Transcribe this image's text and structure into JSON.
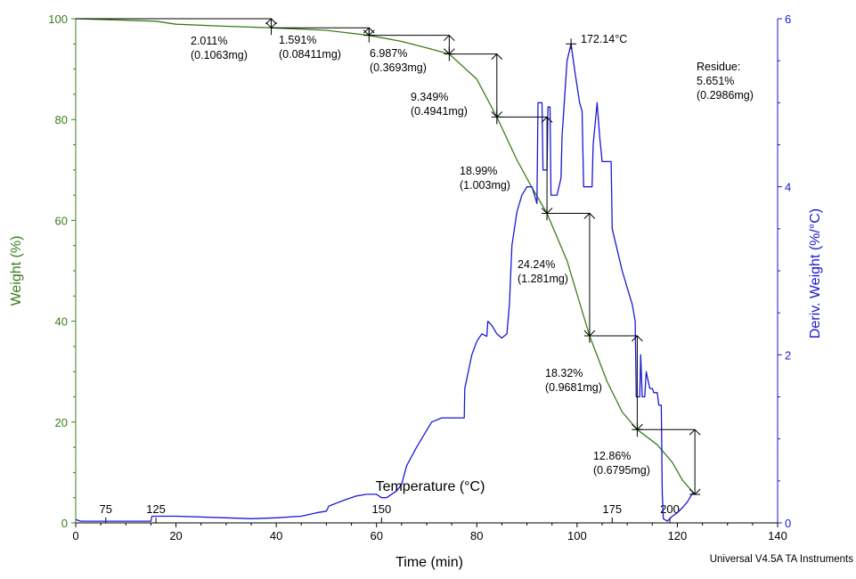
{
  "chart_data": {
    "type": "line",
    "x_label": "Time (min)",
    "y_label_left": "Weight (%)",
    "y_label_right": "Deriv. Weight (%/°C)",
    "temperature_label": "Temperature (°C)",
    "footer": "Universal V4.5A TA Instruments",
    "x_range": [
      0,
      140
    ],
    "x_ticks": [
      0,
      20,
      40,
      60,
      80,
      100,
      120,
      140
    ],
    "y_left_range": [
      0,
      100
    ],
    "y_left_ticks": [
      0,
      20,
      40,
      60,
      80,
      100
    ],
    "y_right_range": [
      0,
      6
    ],
    "y_right_ticks": [
      0,
      2,
      4,
      6
    ],
    "colors": {
      "weight": "#3a7d1c",
      "deriv": "#1a1ad0",
      "axis": "#000000"
    },
    "temperature_ticks": [
      {
        "time": 6,
        "label": "75"
      },
      {
        "time": 16,
        "label": "125"
      },
      {
        "time": 61,
        "label": "150"
      },
      {
        "time": 107,
        "label": "175"
      },
      {
        "time": 118.5,
        "label": "200"
      }
    ],
    "series": [
      {
        "name": "Weight",
        "axis": "left",
        "points": [
          [
            0,
            100
          ],
          [
            10,
            99.7
          ],
          [
            16,
            99.5
          ],
          [
            20,
            98.9
          ],
          [
            30,
            98.5
          ],
          [
            39,
            98.2
          ],
          [
            50,
            97.7
          ],
          [
            58.5,
            96.7
          ],
          [
            65,
            95.5
          ],
          [
            70,
            94.2
          ],
          [
            74.5,
            93.0
          ],
          [
            80,
            88.0
          ],
          [
            84,
            80.5
          ],
          [
            88,
            72.0
          ],
          [
            91,
            66.5
          ],
          [
            94,
            61.4
          ],
          [
            98,
            52.0
          ],
          [
            102.5,
            37.1
          ],
          [
            106,
            28.0
          ],
          [
            109,
            22.0
          ],
          [
            112,
            18.5
          ],
          [
            116,
            15.5
          ],
          [
            119,
            12.0
          ],
          [
            121,
            8.5
          ],
          [
            123.5,
            5.65
          ]
        ]
      },
      {
        "name": "Deriv. Weight",
        "axis": "right",
        "points": [
          [
            0,
            0.04
          ],
          [
            1,
            0.02
          ],
          [
            15,
            0.02
          ],
          [
            15.2,
            0.08
          ],
          [
            20,
            0.08
          ],
          [
            30,
            0.06
          ],
          [
            35,
            0.05
          ],
          [
            40,
            0.06
          ],
          [
            45,
            0.08
          ],
          [
            48,
            0.12
          ],
          [
            50,
            0.14
          ],
          [
            50.5,
            0.2
          ],
          [
            54,
            0.28
          ],
          [
            56,
            0.32
          ],
          [
            58,
            0.34
          ],
          [
            60,
            0.34
          ],
          [
            61,
            0.3
          ],
          [
            62,
            0.3
          ],
          [
            63,
            0.34
          ],
          [
            64,
            0.38
          ],
          [
            65,
            0.46
          ],
          [
            66,
            0.68
          ],
          [
            68,
            0.9
          ],
          [
            70,
            1.1
          ],
          [
            71,
            1.2
          ],
          [
            73,
            1.25
          ],
          [
            74,
            1.25
          ],
          [
            77.5,
            1.25
          ],
          [
            77.6,
            1.6
          ],
          [
            79,
            2.0
          ],
          [
            80,
            2.16
          ],
          [
            81,
            2.25
          ],
          [
            82,
            2.22
          ],
          [
            82.2,
            2.4
          ],
          [
            83,
            2.35
          ],
          [
            84,
            2.25
          ],
          [
            85,
            2.2
          ],
          [
            86,
            2.25
          ],
          [
            86.5,
            2.6
          ],
          [
            87,
            3.3
          ],
          [
            88,
            3.7
          ],
          [
            89,
            3.9
          ],
          [
            90,
            4.0
          ],
          [
            91,
            4.0
          ],
          [
            92,
            3.8
          ],
          [
            92.2,
            5.0
          ],
          [
            93,
            5.0
          ],
          [
            93.2,
            4.2
          ],
          [
            94,
            4.2
          ],
          [
            94.2,
            4.95
          ],
          [
            94.6,
            4.95
          ],
          [
            94.8,
            3.9
          ],
          [
            96,
            3.9
          ],
          [
            96.8,
            4.1
          ],
          [
            97,
            4.6
          ],
          [
            98,
            5.5
          ],
          [
            98.8,
            5.7
          ],
          [
            99.5,
            5.4
          ],
          [
            100.5,
            5.0
          ],
          [
            101,
            4.9
          ],
          [
            101.3,
            4.0
          ],
          [
            103,
            4.0
          ],
          [
            103.2,
            4.5
          ],
          [
            104,
            5.0
          ],
          [
            104.5,
            4.6
          ],
          [
            105,
            4.3
          ],
          [
            106,
            4.3
          ],
          [
            106.8,
            4.3
          ],
          [
            107,
            3.5
          ],
          [
            109,
            3.0
          ],
          [
            110,
            2.8
          ],
          [
            111,
            2.6
          ],
          [
            111.6,
            2.4
          ],
          [
            111.8,
            1.5
          ],
          [
            112.5,
            1.5
          ],
          [
            112.7,
            2.0
          ],
          [
            113,
            1.5
          ],
          [
            113.5,
            1.5
          ],
          [
            113.8,
            1.8
          ],
          [
            114.5,
            1.6
          ],
          [
            115,
            1.6
          ],
          [
            115.3,
            1.55
          ],
          [
            116,
            1.55
          ],
          [
            116.3,
            1.4
          ],
          [
            116.8,
            1.4
          ],
          [
            117,
            0.35
          ],
          [
            117.2,
            0.05
          ],
          [
            118,
            0.02
          ],
          [
            119,
            0.08
          ],
          [
            120,
            0.12
          ],
          [
            121,
            0.18
          ],
          [
            122,
            0.25
          ],
          [
            123,
            0.35
          ],
          [
            123.5,
            0.35
          ]
        ]
      }
    ],
    "annotations": [
      {
        "lines": [
          "2.011%",
          "(0.1063mg)"
        ]
      },
      {
        "lines": [
          "1.591%",
          "(0.08411mg)"
        ]
      },
      {
        "lines": [
          "6.987%",
          "(0.3693mg)"
        ]
      },
      {
        "lines": [
          "9.349%",
          "(0.4941mg)"
        ]
      },
      {
        "lines": [
          "18.99%",
          "(1.003mg)"
        ]
      },
      {
        "lines": [
          "24.24%",
          "(1.281mg)"
        ]
      },
      {
        "lines": [
          "18.32%",
          "(0.9681mg)"
        ]
      },
      {
        "lines": [
          "12.86%",
          "(0.6795mg)"
        ]
      }
    ],
    "peak_label": "172.14°C",
    "peak_point": {
      "time": 98.8,
      "deriv": 5.7
    },
    "residue": [
      "Residue:",
      "5.651%",
      "(0.2986mg)"
    ],
    "steps": [
      {
        "x0": 39,
        "x1": 58.5,
        "y_from": 98.2,
        "y_to": 96.7
      },
      {
        "x0": 58.5,
        "x1": 74.5,
        "y_from": 96.7,
        "y_to": 93.0
      },
      {
        "x0": 74.5,
        "x1": 84,
        "y_from": 93.0,
        "y_to": 80.5
      },
      {
        "x0": 84,
        "x1": 94,
        "y_from": 80.5,
        "y_to": 61.4
      },
      {
        "x0": 94,
        "x1": 102.5,
        "y_from": 61.4,
        "y_to": 37.1
      },
      {
        "x0": 102.5,
        "x1": 112,
        "y_from": 37.1,
        "y_to": 18.5
      },
      {
        "x0": 112,
        "x1": 123.5,
        "y_from": 18.5,
        "y_to": 5.65
      }
    ],
    "first_step": {
      "x0": 0,
      "x1": 39,
      "y_from": 100,
      "y_to": 98.2
    }
  }
}
